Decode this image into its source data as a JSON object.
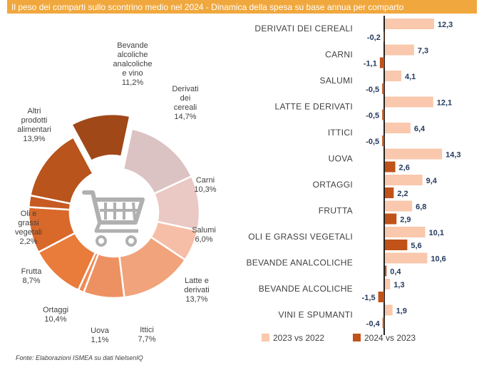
{
  "header": {
    "title": "Il peso dei comparti sullo scontrino medio nel 2024 - Dinamica della spesa su base annua per comparto"
  },
  "source": "Fonte: Elaborazioni ISMEA su dati NielsenIQ",
  "colors": {
    "header": "#f0a83e",
    "bar_2023": "#f9c8ad",
    "bar_2024": "#c0521a",
    "value_label": "#243a5e"
  },
  "chart_data": [
    {
      "type": "pie",
      "title": "Il peso dei comparti sullo scontrino medio nel 2024",
      "unit": "%",
      "slices": [
        {
          "name": "Derivati dei cereali",
          "lines": [
            "Derivati",
            "dei",
            "cereali"
          ],
          "value": 14.7,
          "label": "14,7%",
          "color": "#dcc3c3"
        },
        {
          "name": "Carni",
          "lines": [
            "Carni"
          ],
          "value": 10.3,
          "label": "10,3%",
          "color": "#eac8c3"
        },
        {
          "name": "Salumi",
          "lines": [
            "Salumi"
          ],
          "value": 6.0,
          "label": "6,0%",
          "color": "#f6bea7"
        },
        {
          "name": "Latte e derivati",
          "lines": [
            "Latte e",
            "derivati"
          ],
          "value": 13.7,
          "label": "13,7%",
          "color": "#f1a37b"
        },
        {
          "name": "Ittici",
          "lines": [
            "Ittici"
          ],
          "value": 7.7,
          "label": "7,7%",
          "color": "#ee9162"
        },
        {
          "name": "Uova",
          "lines": [
            "Uova"
          ],
          "value": 1.1,
          "label": "1,1%",
          "color": "#ee8a57"
        },
        {
          "name": "Ortaggi",
          "lines": [
            "Ortaggi"
          ],
          "value": 10.4,
          "label": "10,4%",
          "color": "#e97b3b"
        },
        {
          "name": "Frutta",
          "lines": [
            "Frutta"
          ],
          "value": 8.7,
          "label": "8,7%",
          "color": "#d8692b"
        },
        {
          "name": "Oli e grassi vegetali",
          "lines": [
            "Oli e",
            "grassi",
            "vegetali"
          ],
          "value": 2.2,
          "label": "2,2%",
          "color": "#c65a22"
        },
        {
          "name": "Altri prodotti alimentari",
          "lines": [
            "Altri",
            "prodotti",
            "alimentari"
          ],
          "value": 13.9,
          "label": "13,9%",
          "color": "#b8541c"
        },
        {
          "name": "Bevande alcoliche analcoliche e vino",
          "lines": [
            "Bevande",
            "alcoliche",
            "analcoliche",
            "e vino"
          ],
          "value": 11.2,
          "label": "11,2%",
          "color": "#a04818",
          "exploded": true
        }
      ]
    },
    {
      "type": "bar",
      "orientation": "horizontal",
      "title": "Dinamica della spesa su base annua per comparto",
      "unit": "%",
      "categories": [
        "DERIVATI DEI CEREALI",
        "CARNI",
        "SALUMI",
        "LATTE E DERIVATI",
        "ITTICI",
        "UOVA",
        "ORTAGGI",
        "FRUTTA",
        "OLI E GRASSI VEGETALI",
        "BEVANDE ANALCOLICHE",
        "BEVANDE ALCOLICHE",
        "VINI E SPUMANTI"
      ],
      "series": [
        {
          "name": "2023 vs 2022",
          "values": [
            12.3,
            7.3,
            4.1,
            12.1,
            6.4,
            14.3,
            9.4,
            6.8,
            10.1,
            10.6,
            1.3,
            1.9
          ],
          "labels": [
            "12,3",
            "7,3",
            "4,1",
            "12,1",
            "6,4",
            "14,3",
            "9,4",
            "6,8",
            "10,1",
            "10,6",
            "1,3",
            "1,9"
          ]
        },
        {
          "name": "2024 vs 2023",
          "values": [
            -0.2,
            -1.1,
            -0.5,
            -0.5,
            -0.5,
            2.6,
            2.2,
            2.9,
            5.6,
            0.4,
            -1.5,
            -0.4
          ],
          "labels": [
            "-0,2",
            "-1,1",
            "-0,5",
            "-0,5",
            "-0,5",
            "2,6",
            "2,2",
            "2,9",
            "5,6",
            "0,4",
            "-1,5",
            "-0,4"
          ]
        }
      ],
      "legend": "bottom"
    }
  ]
}
